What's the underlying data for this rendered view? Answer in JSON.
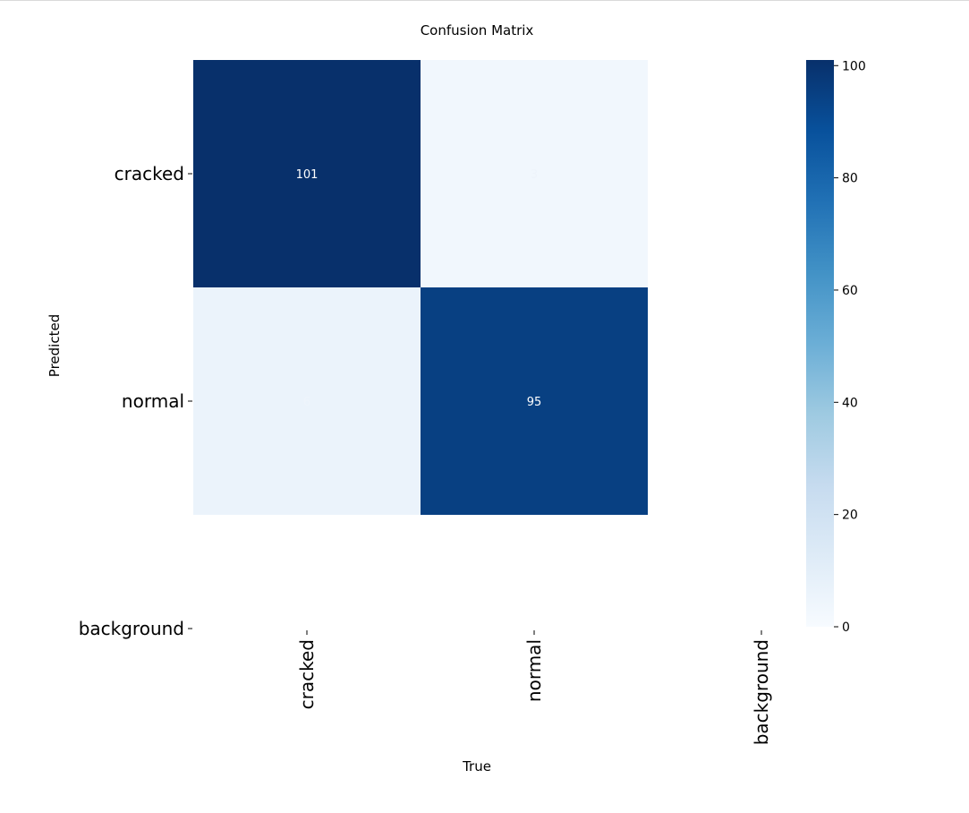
{
  "chart_data": {
    "type": "heatmap",
    "title": "Confusion Matrix",
    "xlabel": "True",
    "ylabel": "Predicted",
    "x_categories": [
      "cracked",
      "normal",
      "background"
    ],
    "y_categories": [
      "cracked",
      "normal",
      "background"
    ],
    "cells": [
      {
        "row": 0,
        "col": 0,
        "value": 101,
        "label": "101"
      },
      {
        "row": 0,
        "col": 1,
        "value": 3,
        "label": "3"
      },
      {
        "row": 1,
        "col": 0,
        "value": 6,
        "label": "6"
      },
      {
        "row": 1,
        "col": 1,
        "value": 95,
        "label": "95"
      }
    ],
    "colorbar": {
      "range": [
        0,
        101
      ],
      "ticks": [
        0,
        20,
        40,
        60,
        80,
        100
      ],
      "tick_labels": [
        "0",
        "20",
        "40",
        "60",
        "80",
        "100"
      ]
    },
    "colormap": "Blues",
    "grid": false
  }
}
